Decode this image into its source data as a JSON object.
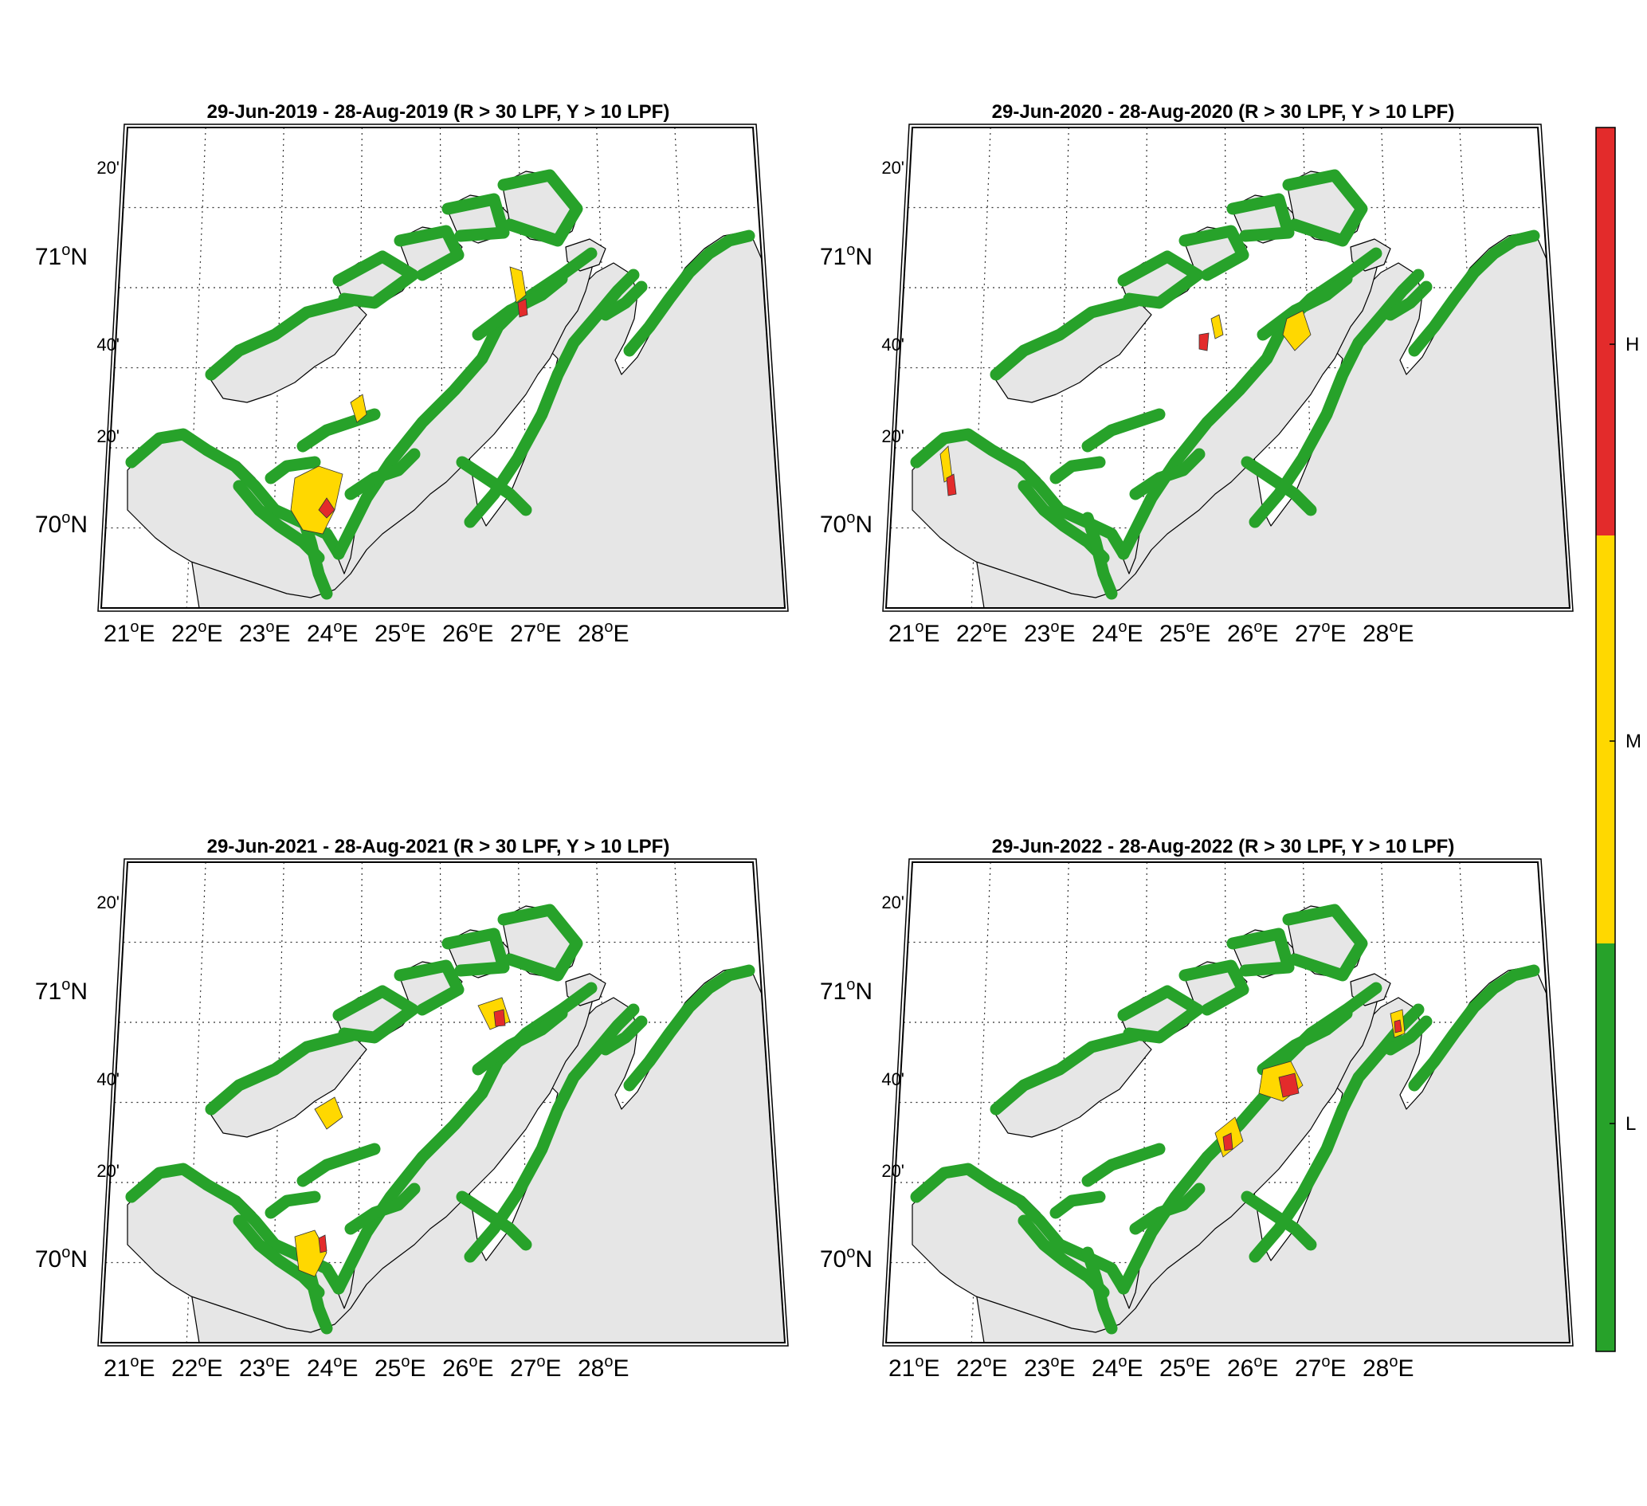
{
  "panels": [
    {
      "title": "29-Jun-2019  - 28-Aug-2019  (R > 30 LPF, Y > 10 LPF)"
    },
    {
      "title": "29-Jun-2020  - 28-Aug-2020  (R > 30 LPF, Y > 10 LPF)"
    },
    {
      "title": "29-Jun-2021  - 28-Aug-2021  (R > 30 LPF, Y > 10 LPF)"
    },
    {
      "title": "29-Jun-2022  - 28-Aug-2022  (R > 30 LPF, Y > 10 LPF)"
    }
  ],
  "axes": {
    "lon_labels": [
      {
        "deg": "21",
        "unit": "E"
      },
      {
        "deg": "22",
        "unit": "E"
      },
      {
        "deg": "23",
        "unit": "E"
      },
      {
        "deg": "24",
        "unit": "E"
      },
      {
        "deg": "25",
        "unit": "E"
      },
      {
        "deg": "26",
        "unit": "E"
      },
      {
        "deg": "27",
        "unit": "E"
      },
      {
        "deg": "28",
        "unit": "E"
      }
    ],
    "lat_major": [
      {
        "deg": "71",
        "unit": "N"
      },
      {
        "deg": "70",
        "unit": "N"
      }
    ],
    "lat_minor": [
      "20'",
      "40'",
      "20'"
    ],
    "degree_symbol": "o"
  },
  "colorbar": {
    "labels": [
      "H",
      "M",
      "L"
    ],
    "colors": {
      "H": "#e32b2b",
      "M": "#ffd800",
      "L": "#27a22a"
    }
  },
  "colors": {
    "land": "#e6e6e6",
    "sea": "#ffffff",
    "green": "#27a22a",
    "yellow": "#ffd800",
    "red": "#e32b2b"
  }
}
